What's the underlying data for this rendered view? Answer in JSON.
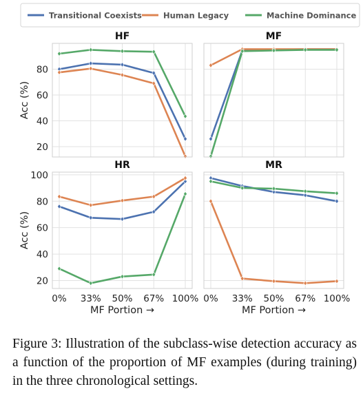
{
  "caption": {
    "label": "Figure 3:",
    "text": "Illustration of the subclass-wise detection accuracy as a function of the proportion of MF examples (during training) in the three chronological settings."
  },
  "chart_data": {
    "type": "line",
    "legend": {
      "placement": "top",
      "entries": [
        "Transitional Coexists",
        "Human Legacy",
        "Machine Dominance"
      ]
    },
    "colors": {
      "Transitional Coexists": "#4c72b0",
      "Human Legacy": "#dd8452",
      "Machine Dominance": "#55a868"
    },
    "categories": [
      "0%",
      "33%",
      "50%",
      "67%",
      "100%"
    ],
    "xlabel": "MF Portion →",
    "ylabel": "Acc (%)",
    "grid": true,
    "panels": [
      {
        "title": "HF",
        "ylim": [
          12,
          100
        ],
        "yticks": [
          20,
          40,
          60,
          80
        ],
        "series": [
          {
            "name": "Transitional Coexists",
            "values": [
              80,
              84.5,
              83.5,
              77,
              26
            ]
          },
          {
            "name": "Human Legacy",
            "values": [
              77.5,
              80.5,
              75.5,
              69,
              12.5
            ]
          },
          {
            "name": "Machine Dominance",
            "values": [
              92,
              95,
              94,
              93.5,
              43.5
            ]
          }
        ]
      },
      {
        "title": "MF",
        "ylim": [
          12,
          100
        ],
        "yticks": [
          20,
          40,
          60,
          80
        ],
        "series": [
          {
            "name": "Transitional Coexists",
            "values": [
              26,
              94.5,
              95,
              95.5,
              95.5
            ]
          },
          {
            "name": "Human Legacy",
            "values": [
              83,
              95.5,
              95.5,
              95.5,
              95.5
            ]
          },
          {
            "name": "Machine Dominance",
            "values": [
              12.5,
              94,
              94.5,
              95,
              95
            ]
          }
        ]
      },
      {
        "title": "HR",
        "ylim": [
          14,
          102
        ],
        "yticks": [
          20,
          40,
          60,
          80,
          100
        ],
        "series": [
          {
            "name": "Transitional Coexists",
            "values": [
              76,
              67.5,
              66.5,
              72,
              95
            ]
          },
          {
            "name": "Human Legacy",
            "values": [
              83.5,
              77,
              80.5,
              83.5,
              97.5
            ]
          },
          {
            "name": "Machine Dominance",
            "values": [
              29,
              18,
              23,
              24.5,
              85.5
            ]
          }
        ]
      },
      {
        "title": "MR",
        "ylim": [
          14,
          102
        ],
        "yticks": [
          20,
          40,
          60,
          80,
          100
        ],
        "series": [
          {
            "name": "Transitional Coexists",
            "values": [
              97.5,
              91.5,
              87,
              84.5,
              80
            ]
          },
          {
            "name": "Human Legacy",
            "values": [
              80,
              21.5,
              19.5,
              18,
              19.5
            ]
          },
          {
            "name": "Machine Dominance",
            "values": [
              95,
              90,
              89.5,
              87.5,
              86
            ]
          }
        ]
      }
    ]
  }
}
